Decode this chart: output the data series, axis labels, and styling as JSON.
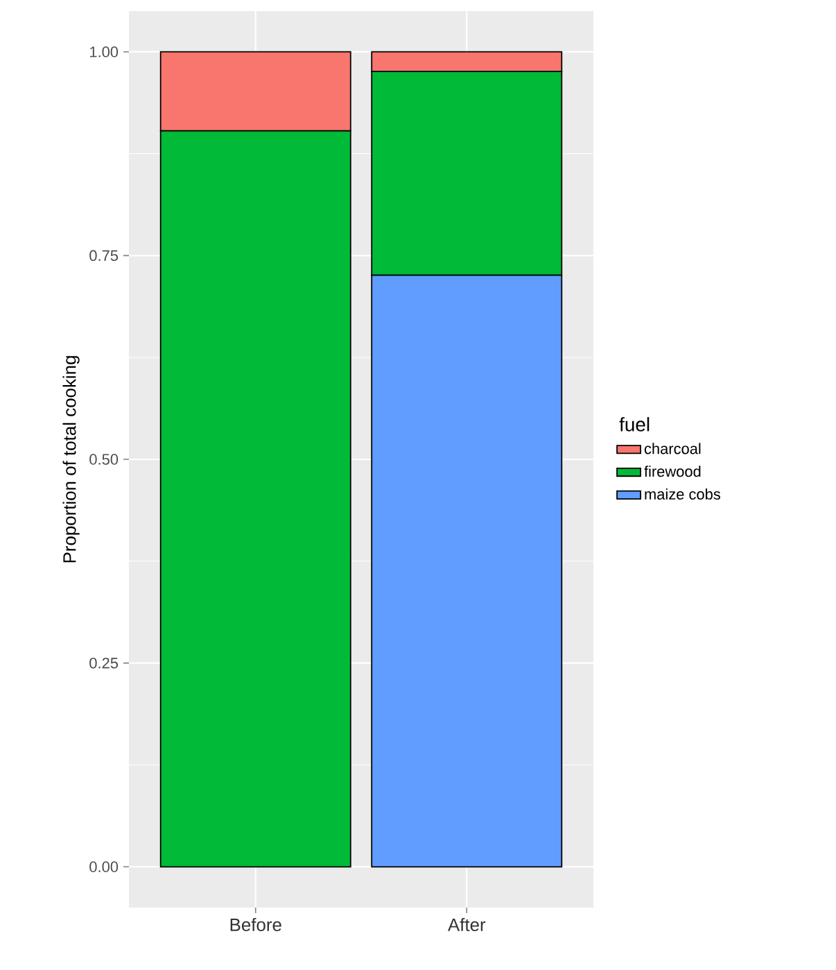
{
  "chart_data": {
    "type": "bar",
    "stacked": true,
    "ylabel": "Proportion of total cooking",
    "legend_title": "fuel",
    "legend": "right",
    "grid": true,
    "categories": [
      "Before",
      "After"
    ],
    "series": [
      {
        "name": "maize cobs",
        "color": "#619cff",
        "values": [
          0,
          0.726
        ]
      },
      {
        "name": "firewood",
        "color": "#00ba38",
        "values": [
          0.903,
          0.25
        ]
      },
      {
        "name": "charcoal",
        "color": "#f8766d",
        "values": [
          0.097,
          0.024
        ]
      }
    ],
    "ylim": [
      -0.05,
      1.05
    ],
    "yticks": [
      {
        "value": 0,
        "label": "0.00"
      },
      {
        "value": 0.25,
        "label": "0.25"
      },
      {
        "value": 0.5,
        "label": "0.50"
      },
      {
        "value": 0.75,
        "label": "0.75"
      },
      {
        "value": 1,
        "label": "1.00"
      }
    ]
  }
}
